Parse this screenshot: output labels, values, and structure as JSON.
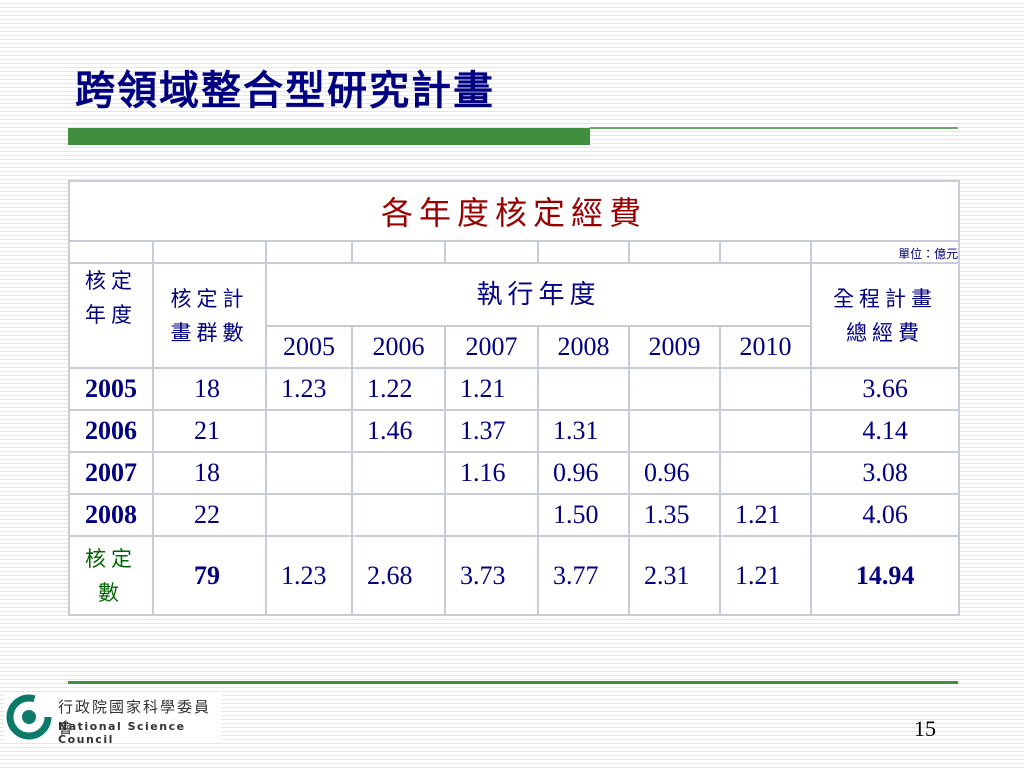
{
  "header": {
    "title": "跨領域整合型研究計畫"
  },
  "table": {
    "title": "各年度核定經費",
    "unit": "單位：億元",
    "col_headers": {
      "approved_year": "核定年度",
      "group_count": "核定計畫群數",
      "execution_year": "執行年度",
      "years": [
        "2005",
        "2006",
        "2007",
        "2008",
        "2009",
        "2010"
      ],
      "total": "全程計畫總經費"
    },
    "rows": [
      [
        "2005",
        "18",
        "1.23",
        "1.22",
        "1.21",
        null,
        null,
        null,
        "3.66"
      ],
      [
        "2006",
        "21",
        null,
        "1.46",
        "1.37",
        "1.31",
        null,
        null,
        "4.14"
      ],
      [
        "2007",
        "18",
        null,
        null,
        "1.16",
        "0.96",
        "0.96",
        null,
        "3.08"
      ],
      [
        "2008",
        "22",
        null,
        null,
        null,
        "1.50",
        "1.35",
        "1.21",
        "4.06"
      ]
    ],
    "summary": {
      "label": "核定數",
      "group_count": "79",
      "values": [
        "1.23",
        "2.68",
        "3.73",
        "3.77",
        "2.31",
        "1.21"
      ],
      "total": "14.94"
    }
  },
  "footer": {
    "org_zh": "行政院國家科學委員會",
    "org_en": "National Science Council",
    "page": "15"
  }
}
